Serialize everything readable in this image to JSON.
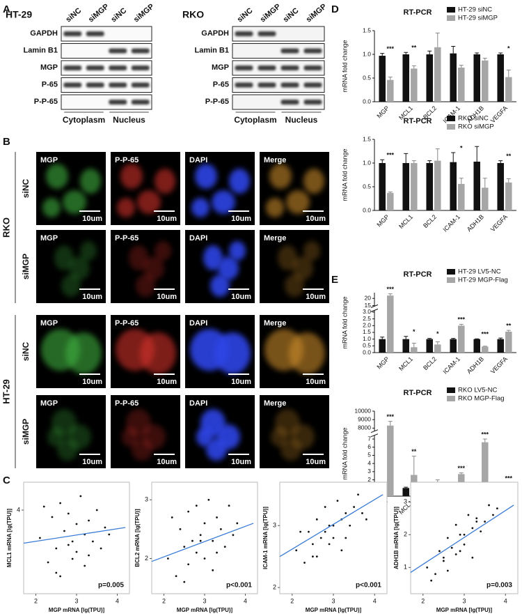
{
  "panel_labels": [
    "A",
    "B",
    "C",
    "D",
    "E"
  ],
  "western_blots": [
    {
      "cell_line": "HT-29",
      "lanes": [
        "siNC",
        "siMGP",
        "siNC",
        "siMGP"
      ],
      "proteins": [
        "GAPDH",
        "Lamin B1",
        "MGP",
        "P-65",
        "P-P-65"
      ],
      "fractions": [
        "Cytoplasm",
        "Nucleus"
      ]
    },
    {
      "cell_line": "RKO",
      "lanes": [
        "siNC",
        "siMGP",
        "siNC",
        "siMGP"
      ],
      "proteins": [
        "GAPDH",
        "Lamin  B1",
        "MGP",
        "P-65",
        "P-P-65"
      ],
      "fractions": [
        "Cytoplasm",
        "Nucleus"
      ]
    }
  ],
  "immunofluorescence": {
    "channels": [
      "MGP",
      "P-P-65",
      "DAPI",
      "Merge"
    ],
    "cell_lines": [
      "RKO",
      "HT-29"
    ],
    "conditions": [
      "siNC",
      "siMGP"
    ],
    "scale_bar": "10um"
  },
  "chart_data": [
    {
      "type": "bar",
      "title": "RT-PCR",
      "y_label": "mRNA fold change",
      "categories": [
        "MGP",
        "MCL1",
        "BCL2",
        "ICAM-1",
        "ADH1B",
        "VEGFA"
      ],
      "series": [
        {
          "name": "HT-29 siNC",
          "color": "#111111",
          "values": [
            0.97,
            1.0,
            1.0,
            1.02,
            1.0,
            1.0
          ],
          "errors": [
            0.05,
            0.04,
            0.07,
            0.15,
            0.03,
            0.03
          ]
        },
        {
          "name": "HT-29 siMGP",
          "color": "#a6a6a6",
          "values": [
            0.46,
            0.7,
            1.15,
            0.72,
            0.87,
            0.52
          ],
          "errors": [
            0.06,
            0.06,
            0.3,
            0.05,
            0.05,
            0.15
          ]
        }
      ],
      "ylim": [
        0,
        1.5
      ],
      "yticks": [
        {
          "value": 0,
          "label": "0.0"
        },
        {
          "value": 0.5,
          "label": "0.5"
        },
        {
          "value": 1,
          "label": "1.0"
        },
        {
          "value": 1.5,
          "label": "1.5"
        }
      ],
      "annotations": [
        {
          "category": "MGP",
          "text": "***"
        },
        {
          "category": "MCL1",
          "text": "**"
        },
        {
          "category": "VEGFA",
          "text": "*"
        }
      ]
    },
    {
      "type": "bar",
      "title": "RT-PCR",
      "y_label": "mRNA fold change",
      "categories": [
        "MGP",
        "MCL1",
        "BCL2",
        "ICAM-1",
        "ADH1B",
        "VEGFA"
      ],
      "series": [
        {
          "name": "RKO siNC",
          "color": "#111111",
          "values": [
            1.0,
            1.0,
            1.0,
            1.02,
            1.03,
            1.0
          ],
          "errors": [
            0.07,
            0.2,
            0.05,
            0.2,
            0.32,
            0.05
          ]
        },
        {
          "name": "RKO siMGP",
          "color": "#a6a6a6",
          "values": [
            0.37,
            1.0,
            1.05,
            0.56,
            0.48,
            0.59
          ],
          "errors": [
            0.02,
            0.05,
            0.25,
            0.12,
            0.2,
            0.08
          ]
        }
      ],
      "ylim": [
        0,
        1.5
      ],
      "yticks": [
        {
          "value": 0,
          "label": "0.0"
        },
        {
          "value": 0.5,
          "label": "0.5"
        },
        {
          "value": 1,
          "label": "1.0"
        },
        {
          "value": 1.5,
          "label": "1.5"
        }
      ],
      "annotations": [
        {
          "category": "MGP",
          "text": "***"
        },
        {
          "category": "ICAM-1",
          "text": "*"
        },
        {
          "category": "VEGFA",
          "text": "**"
        }
      ]
    },
    {
      "type": "bar",
      "title": "RT-PCR",
      "y_label": "mRNA fold change",
      "categories": [
        "MGP",
        "MCL1",
        "BCL2",
        "ICAM-1",
        "ADH1B",
        "VEGFA"
      ],
      "series": [
        {
          "name": "HT-29 LV5-NC",
          "color": "#111111",
          "values": [
            1.0,
            1.0,
            1.0,
            1.0,
            1.0,
            1.0
          ],
          "errors": [
            0.15,
            0.2,
            0.05,
            0.05,
            0.02,
            0.08
          ]
        },
        {
          "name": "HT-29 MGP-Flag",
          "color": "#a6a6a6",
          "values": [
            22,
            0.4,
            0.6,
            2.0,
            0.45,
            1.55
          ],
          "errors": [
            1.2,
            0.3,
            0.2,
            0.1,
            0.03,
            0.1
          ]
        }
      ],
      "ylim": [
        0,
        24
      ],
      "axis_break": [
        3.2,
        14
      ],
      "yticks": [
        {
          "value": 0,
          "label": "0.0"
        },
        {
          "value": 0.5,
          "label": "0.5"
        },
        {
          "value": 1,
          "label": "1.0"
        },
        {
          "value": 1.5,
          "label": "1.5"
        },
        {
          "value": 2,
          "label": "2.0"
        },
        {
          "value": 2.5,
          "label": "2.5"
        },
        {
          "value": 3,
          "label": "3.0"
        },
        15,
        20
      ],
      "annotations": [
        {
          "category": "MGP",
          "text": "***"
        },
        {
          "category": "MCL1",
          "text": "*"
        },
        {
          "category": "BCL2",
          "text": "*"
        },
        {
          "category": "ICAM-1",
          "text": "***"
        },
        {
          "category": "ADH1B",
          "text": "***"
        },
        {
          "category": "VEGFA",
          "text": "**"
        }
      ]
    },
    {
      "type": "bar",
      "title": "RT-PCR",
      "y_label": "mRNA fold change",
      "categories": [
        "MGP",
        "MCL1",
        "BCL2",
        "ICAM-1",
        "ADH1B",
        "VEGFA"
      ],
      "series": [
        {
          "name": "RKO LV5-NC",
          "color": "#111111",
          "values": [
            1.0,
            1.0,
            1.0,
            1.0,
            0.9,
            1.0
          ],
          "errors": [
            0.1,
            0.1,
            0.1,
            0.15,
            0.1,
            0.1
          ]
        },
        {
          "name": "RKO MGP-Flag",
          "color": "#a6a6a6",
          "values": [
            8300,
            2.6,
            1.6,
            2.7,
            6.6,
            1.5
          ],
          "errors": [
            500,
            2.3,
            0.4,
            0.15,
            0.4,
            0.1
          ]
        }
      ],
      "ylim": [
        0,
        10000
      ],
      "axis_break": [
        7.5,
        7600
      ],
      "yticks": [
        0,
        1,
        2,
        3,
        4,
        5,
        6,
        7,
        8000,
        9000,
        10000
      ],
      "annotations": [
        {
          "category": "MGP",
          "text": "***"
        },
        {
          "category": "MCL1",
          "text": "**"
        },
        {
          "category": "ICAM-1",
          "text": "***"
        },
        {
          "category": "ADH1B",
          "text": "***"
        },
        {
          "category": "VEGFA",
          "text": "***"
        }
      ]
    },
    {
      "type": "scatter",
      "x_label": "MGP mRNA [lg(TPU)]",
      "y_label": "MCL1 mRNA [lg(TPU)]",
      "annotation": "p=0.005",
      "x": [
        2.1,
        2.3,
        2.4,
        2.5,
        2.6,
        2.6,
        2.7,
        2.8,
        2.8,
        2.9,
        3.0,
        3.0,
        3.1,
        3.2,
        3.2,
        3.3,
        3.4,
        3.5,
        3.6,
        3.7,
        3.8,
        2.2,
        2.5,
        2.9,
        3.3
      ],
      "y": [
        3.2,
        2.5,
        3.8,
        2.9,
        4.2,
        2.1,
        3.4,
        3.0,
        3.9,
        2.6,
        3.6,
        2.8,
        4.4,
        3.3,
        2.4,
        3.7,
        3.1,
        4.0,
        2.9,
        3.5,
        3.3,
        4.1,
        2.2,
        3.1,
        2.7
      ],
      "trend_line": {
        "x": [
          1.7,
          4.2
        ],
        "y": [
          3.05,
          3.5
        ]
      },
      "xlim": [
        1.7,
        4.3
      ],
      "ylim": [
        1.6,
        4.8
      ],
      "xticks": [
        2,
        3,
        4
      ],
      "yticks": [
        4
      ],
      "color": "#111111",
      "line_color": "#3a7bd5"
    },
    {
      "type": "scatter",
      "x_label": "MGP mRNA [lg(TPU)]",
      "y_label": "BCL2 mRNA [lg(TPU)]",
      "annotation": "p<0.001",
      "x": [
        2.1,
        2.3,
        2.4,
        2.5,
        2.6,
        2.6,
        2.7,
        2.8,
        2.8,
        2.9,
        3.0,
        3.0,
        3.1,
        3.2,
        3.2,
        3.3,
        3.4,
        3.5,
        3.6,
        3.7,
        3.8,
        2.2,
        2.5,
        2.9,
        3.3
      ],
      "y": [
        2.0,
        1.7,
        2.5,
        2.2,
        2.8,
        1.9,
        2.3,
        2.1,
        2.9,
        2.4,
        2.6,
        2.0,
        3.0,
        2.3,
        1.8,
        2.7,
        2.5,
        2.2,
        2.9,
        2.4,
        2.6,
        2.7,
        1.6,
        2.3,
        2.1
      ],
      "trend_line": {
        "x": [
          1.7,
          4.2
        ],
        "y": [
          1.95,
          2.6
        ]
      },
      "xlim": [
        1.7,
        4.3
      ],
      "ylim": [
        1.4,
        3.3
      ],
      "xticks": [
        2,
        3,
        4
      ],
      "yticks": [
        2,
        3
      ],
      "color": "#111111",
      "line_color": "#3a7bd5"
    },
    {
      "type": "scatter",
      "x_label": "MGP mRNA [lg(TPU)]",
      "y_label": "ICAM-1 mRNA [lg(TPU)]",
      "annotation": "p<0.001",
      "x": [
        2.1,
        2.3,
        2.4,
        2.5,
        2.6,
        2.6,
        2.7,
        2.8,
        2.8,
        2.9,
        3.0,
        3.0,
        3.1,
        3.2,
        3.2,
        3.3,
        3.4,
        3.5,
        3.6,
        3.7,
        3.8,
        2.2,
        2.5,
        2.9,
        3.3
      ],
      "y": [
        2.6,
        2.4,
        2.9,
        2.7,
        3.1,
        2.5,
        2.8,
        2.9,
        3.3,
        2.7,
        3.0,
        2.8,
        3.4,
        3.1,
        2.6,
        3.2,
        3.0,
        3.3,
        3.5,
        3.2,
        3.1,
        2.9,
        2.5,
        3.0,
        2.8
      ],
      "trend_line": {
        "x": [
          1.7,
          4.2
        ],
        "y": [
          2.5,
          3.5
        ]
      },
      "xlim": [
        1.7,
        4.3
      ],
      "ylim": [
        1.9,
        3.7
      ],
      "xticks": [
        2,
        3,
        4
      ],
      "yticks": [
        2,
        3
      ],
      "color": "#111111",
      "line_color": "#3a7bd5"
    },
    {
      "type": "scatter",
      "x_label": "MGP mRNA [lg(TPU)]",
      "y_label": "ADH1B mRNA [lg(TPU)]",
      "annotation": "p=0.003",
      "x": [
        2.1,
        2.3,
        2.4,
        2.5,
        2.6,
        2.6,
        2.7,
        2.8,
        2.8,
        2.9,
        3.0,
        3.0,
        3.1,
        3.2,
        3.2,
        3.3,
        3.4,
        3.5,
        3.6,
        3.7,
        3.8,
        2.2,
        2.5,
        2.9,
        3.3
      ],
      "y": [
        1.0,
        0.8,
        1.5,
        1.3,
        1.9,
        0.9,
        1.6,
        1.4,
        2.3,
        1.5,
        2.0,
        1.7,
        2.6,
        2.2,
        1.3,
        2.5,
        2.1,
        2.4,
        2.9,
        2.6,
        2.8,
        0.6,
        1.2,
        2.0,
        2.4
      ],
      "trend_line": {
        "x": [
          1.7,
          4.2
        ],
        "y": [
          0.85,
          2.9
        ]
      },
      "xlim": [
        1.7,
        4.3
      ],
      "ylim": [
        0.2,
        3.6
      ],
      "xticks": [
        2,
        3,
        4
      ],
      "yticks": [
        1,
        2,
        3
      ],
      "color": "#111111",
      "line_color": "#3a7bd5"
    }
  ]
}
